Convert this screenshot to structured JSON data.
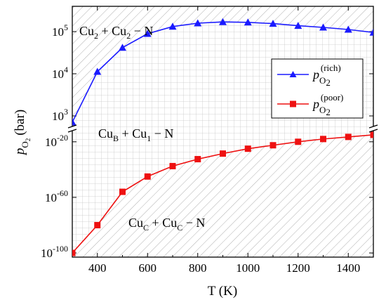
{
  "chart_data": {
    "type": "line",
    "xlabel": "T (K)",
    "ylabel": "p_O2 (bar)",
    "ylabel_main": "p",
    "ylabel_sub": "O",
    "ylabel_subsub": "2",
    "ylabel_unit": "(bar)",
    "grid": true,
    "axis_break": true,
    "xlim": [
      300,
      1500
    ],
    "x_ticks": [
      400,
      600,
      800,
      1000,
      1200,
      1400
    ],
    "upper_panel": {
      "scale": "log10",
      "ylim_log": [
        2.75,
        5.6
      ],
      "ticks": [
        {
          "exp": 3,
          "label_base": "10",
          "label_exp": "3"
        },
        {
          "exp": 4,
          "label_base": "10",
          "label_exp": "4"
        },
        {
          "exp": 5,
          "label_base": "10",
          "label_exp": "5"
        }
      ]
    },
    "lower_panel": {
      "scale": "log10",
      "ylim_log": [
        -103,
        -12
      ],
      "ticks": [
        {
          "exp": -20,
          "label_base": "10",
          "label_exp": "-20"
        },
        {
          "exp": -60,
          "label_base": "10",
          "label_exp": "-60"
        },
        {
          "exp": -100,
          "label_base": "10",
          "label_exp": "-100"
        }
      ]
    },
    "series": [
      {
        "name": "p_O2^(rich)",
        "legend_main": "p",
        "legend_sub": "O",
        "legend_subsub": "2",
        "legend_sup": "(rich)",
        "color": "#1a1aff",
        "marker": "triangle",
        "panel": "upper",
        "x": [
          300,
          400,
          500,
          600,
          700,
          800,
          900,
          1000,
          1100,
          1200,
          1300,
          1400,
          1500
        ],
        "log10_y": [
          2.85,
          4.05,
          4.62,
          4.95,
          5.12,
          5.2,
          5.23,
          5.22,
          5.19,
          5.14,
          5.1,
          5.05,
          4.98
        ]
      },
      {
        "name": "p_O2^(poor)",
        "legend_main": "p",
        "legend_sub": "O",
        "legend_subsub": "2",
        "legend_sup": "(poor)",
        "color": "#ee1111",
        "marker": "square",
        "panel": "lower",
        "x": [
          300,
          400,
          500,
          600,
          700,
          800,
          900,
          1000,
          1100,
          1200,
          1300,
          1400,
          1500
        ],
        "log10_y": [
          -100,
          -80,
          -56,
          -45,
          -37.5,
          -32.5,
          -28.5,
          -25,
          -22.5,
          -20,
          -18,
          -16.5,
          -15
        ]
      }
    ],
    "regions": [
      {
        "parts": [
          [
            "Cu",
            "2"
          ],
          [
            " + ",
            ""
          ],
          [
            "Cu",
            "2"
          ],
          [
            " − N",
            ""
          ]
        ]
      },
      {
        "parts": [
          [
            "Cu",
            "B"
          ],
          [
            " + ",
            ""
          ],
          [
            "Cu",
            "1"
          ],
          [
            " − N",
            ""
          ]
        ]
      },
      {
        "parts": [
          [
            "Cu",
            "C"
          ],
          [
            " + ",
            ""
          ],
          [
            "Cu",
            "C"
          ],
          [
            " − N",
            ""
          ]
        ]
      }
    ],
    "legend_position": "right-middle of upper panel"
  }
}
